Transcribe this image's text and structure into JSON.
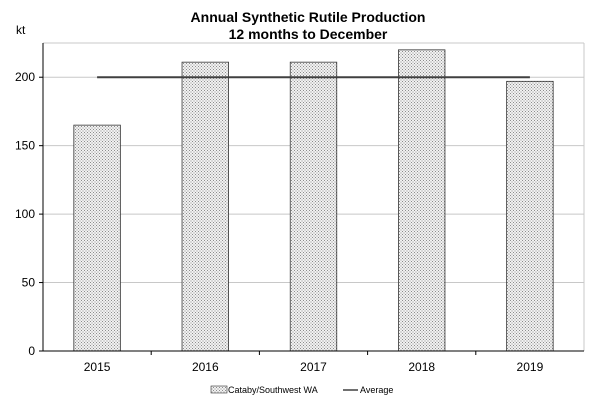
{
  "chart_data": {
    "type": "bar",
    "title": "Annual Synthetic Rutile Production",
    "subtitle": "12 months to December",
    "ylabel": "kt",
    "xlabel": "",
    "categories": [
      "2015",
      "2016",
      "2017",
      "2018",
      "2019"
    ],
    "series": [
      {
        "name": "Cataby/Southwest WA",
        "type": "bar",
        "values": [
          165,
          211,
          211,
          220,
          197
        ]
      },
      {
        "name": "Average",
        "type": "line",
        "values": [
          200,
          200,
          200,
          200,
          200
        ]
      }
    ],
    "ylim": [
      0,
      225
    ],
    "yticks": [
      0,
      50,
      100,
      150,
      200
    ],
    "grid": true,
    "legend_position": "bottom"
  },
  "colors": {
    "bar_fill": "#f2f2f2",
    "bar_pattern": "#8c8c8c",
    "bar_stroke": "#333333",
    "average_line": "#404040",
    "gridline": "#c8c8c8"
  }
}
